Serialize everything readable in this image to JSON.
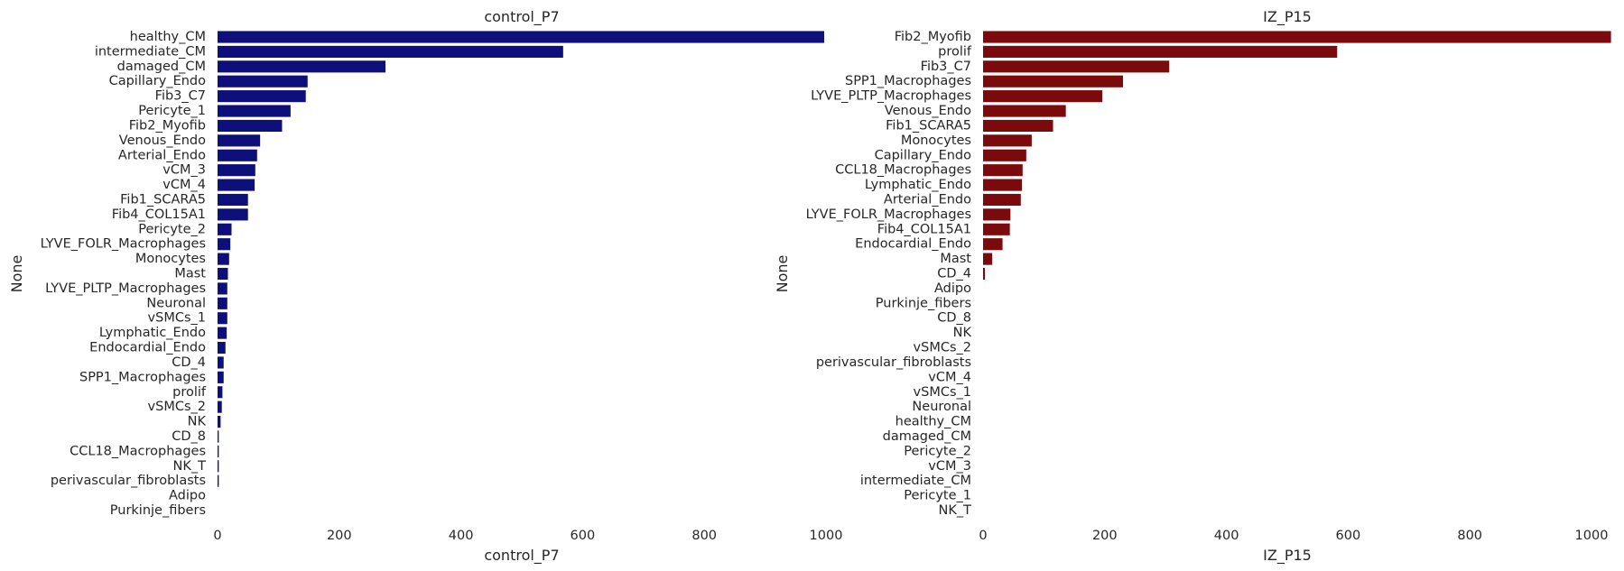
{
  "chart_data": [
    {
      "type": "bar",
      "orientation": "horizontal",
      "title": "control_P7",
      "xlabel": "control_P7",
      "ylabel": "None",
      "color": "#0d0f7a",
      "xlim": [
        0,
        1000
      ],
      "xticks": [
        0,
        200,
        400,
        600,
        800,
        1000
      ],
      "grid": false,
      "categories": [
        "healthy_CM",
        "intermediate_CM",
        "damaged_CM",
        "Capillary_Endo",
        "Fib3_C7",
        "Pericyte_1",
        "Fib2_Myofib",
        "Venous_Endo",
        "Arterial_Endo",
        "vCM_3",
        "vCM_4",
        "Fib1_SCARA5",
        "Fib4_COL15A1",
        "Pericyte_2",
        "LYVE_FOLR_Macrophages",
        "Monocytes",
        "Mast",
        "LYVE_PLTP_Macrophages",
        "Neuronal",
        "vSMCs_1",
        "Lymphatic_Endo",
        "Endocardial_Endo",
        "CD_4",
        "SPP1_Macrophages",
        "prolif",
        "vSMCs_2",
        "NK",
        "CD_8",
        "CCL18_Macrophages",
        "NK_T",
        "perivascular_fibroblasts",
        "Adipo",
        "Purkinje_fibers"
      ],
      "values": [
        997,
        568,
        276,
        148,
        145,
        120,
        106,
        70,
        65,
        62,
        61,
        50,
        50,
        23,
        21,
        19,
        17,
        16,
        16,
        16,
        15,
        13,
        10,
        10,
        8,
        7,
        5,
        2,
        2,
        2,
        2,
        0,
        0
      ]
    },
    {
      "type": "bar",
      "orientation": "horizontal",
      "title": "IZ_P15",
      "xlabel": "IZ_P15",
      "ylabel": "None",
      "color": "#7a0a0c",
      "xlim": [
        0,
        1000
      ],
      "xticks": [
        0,
        200,
        400,
        600,
        800,
        1000
      ],
      "grid": false,
      "categories": [
        "Fib2_Myofib",
        "prolif",
        "Fib3_C7",
        "SPP1_Macrophages",
        "LYVE_PLTP_Macrophages",
        "Venous_Endo",
        "Fib1_SCARA5",
        "Monocytes",
        "Capillary_Endo",
        "CCL18_Macrophages",
        "Lymphatic_Endo",
        "Arterial_Endo",
        "LYVE_FOLR_Macrophages",
        "Fib4_COL15A1",
        "Endocardial_Endo",
        "Mast",
        "CD_4",
        "Adipo",
        "Purkinje_fibers",
        "CD_8",
        "NK",
        "vSMCs_2",
        "perivascular_fibroblasts",
        "vCM_4",
        "vSMCs_1",
        "Neuronal",
        "healthy_CM",
        "damaged_CM",
        "Pericyte_2",
        "vCM_3",
        "intermediate_CM",
        "Pericyte_1",
        "NK_T"
      ],
      "values": [
        1032,
        582,
        306,
        230,
        196,
        136,
        115,
        80,
        71,
        65,
        64,
        62,
        45,
        44,
        32,
        15,
        3,
        0,
        0,
        0,
        0,
        0,
        0,
        0,
        0,
        0,
        0,
        0,
        0,
        0,
        0,
        0,
        0
      ]
    }
  ]
}
